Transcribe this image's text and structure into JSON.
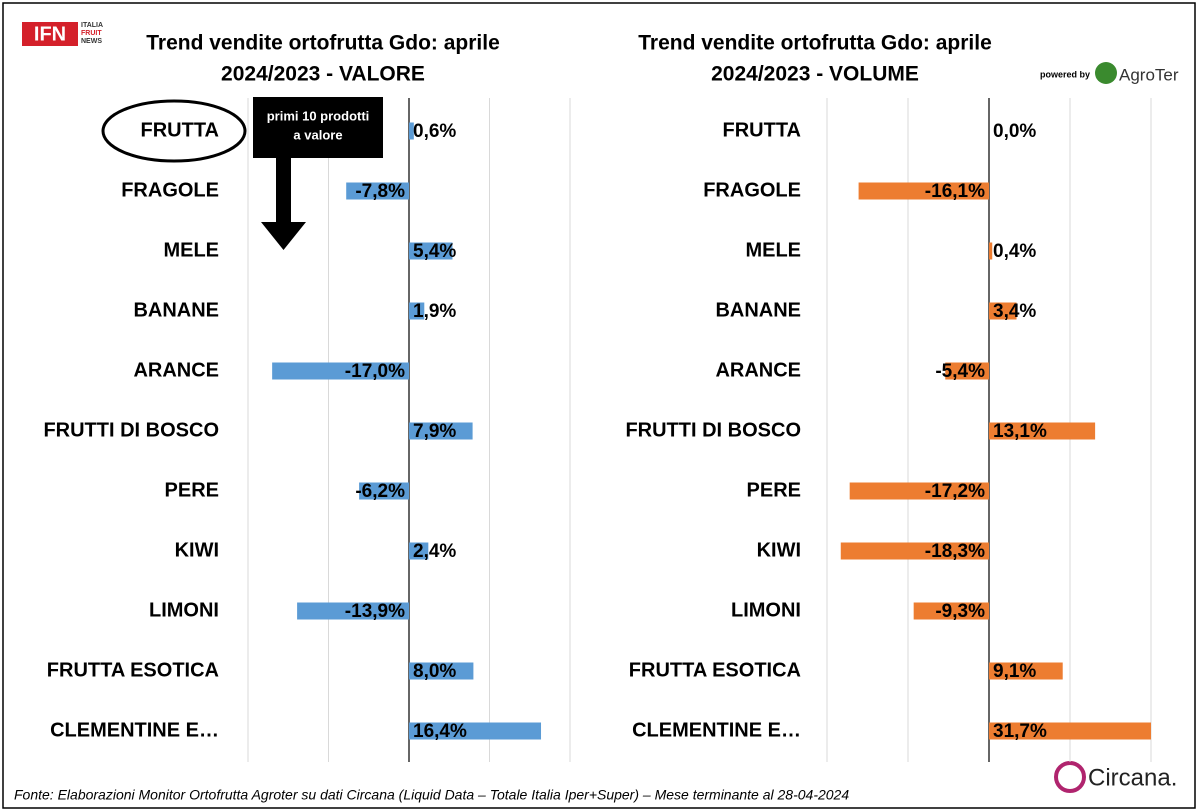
{
  "branding": {
    "logo": "IFN",
    "logo_tagline": [
      "ITALIA",
      "FRUIT",
      "NEWS"
    ],
    "powered_by": "powered by",
    "partner": "AgroTer",
    "data_provider": "Circana."
  },
  "source": "Fonte: Elaborazioni Monitor Ortofrutta Agroter su dati Circana (Liquid Data – Totale Italia Iper+Super) – Mese terminante al 28-04-2024",
  "chart_data": [
    {
      "type": "bar",
      "orientation": "horizontal",
      "title": [
        "Trend vendite ortofrutta Gdo: aprile",
        "2024/2023 - VALORE"
      ],
      "categories": [
        "FRUTTA",
        "FRAGOLE",
        "MELE",
        "BANANE",
        "ARANCE",
        "FRUTTI DI BOSCO",
        "PERE",
        "KIWI",
        "LIMONI",
        "FRUTTA ESOTICA",
        "CLEMENTINE E…"
      ],
      "values": [
        0.6,
        -7.8,
        5.4,
        1.9,
        -17.0,
        7.9,
        -6.2,
        2.4,
        -13.9,
        8.0,
        16.4
      ],
      "value_labels": [
        "0,6%",
        "-7,8%",
        "5,4%",
        "1,9%",
        "-17,0%",
        "7,9%",
        "-6,2%",
        "2,4%",
        "-13,9%",
        "8,0%",
        "16,4%"
      ],
      "color": "#5b9bd5",
      "xlim": [
        -20,
        20
      ],
      "xticks": [
        -20,
        -10,
        0,
        10,
        20
      ],
      "grid": true,
      "annotation": [
        "primi 10 prodotti",
        "a valore"
      ]
    },
    {
      "type": "bar",
      "orientation": "horizontal",
      "title": [
        "Trend vendite ortofrutta Gdo: aprile",
        "2024/2023 - VOLUME"
      ],
      "categories": [
        "FRUTTA",
        "FRAGOLE",
        "MELE",
        "BANANE",
        "ARANCE",
        "FRUTTI DI BOSCO",
        "PERE",
        "KIWI",
        "LIMONI",
        "FRUTTA ESOTICA",
        "CLEMENTINE E…"
      ],
      "values": [
        0.0,
        -16.1,
        0.4,
        3.4,
        -5.4,
        13.1,
        -17.2,
        -18.3,
        -9.3,
        9.1,
        31.7
      ],
      "value_labels": [
        "0,0%",
        "-16,1%",
        "0,4%",
        "3,4%",
        "-5,4%",
        "13,1%",
        "-17,2%",
        "-18,3%",
        "-9,3%",
        "9,1%",
        "31,7%"
      ],
      "color": "#ed7d31",
      "xlim": [
        -20,
        20
      ],
      "xticks": [
        -20,
        -10,
        0,
        10,
        20
      ],
      "grid": true
    }
  ]
}
